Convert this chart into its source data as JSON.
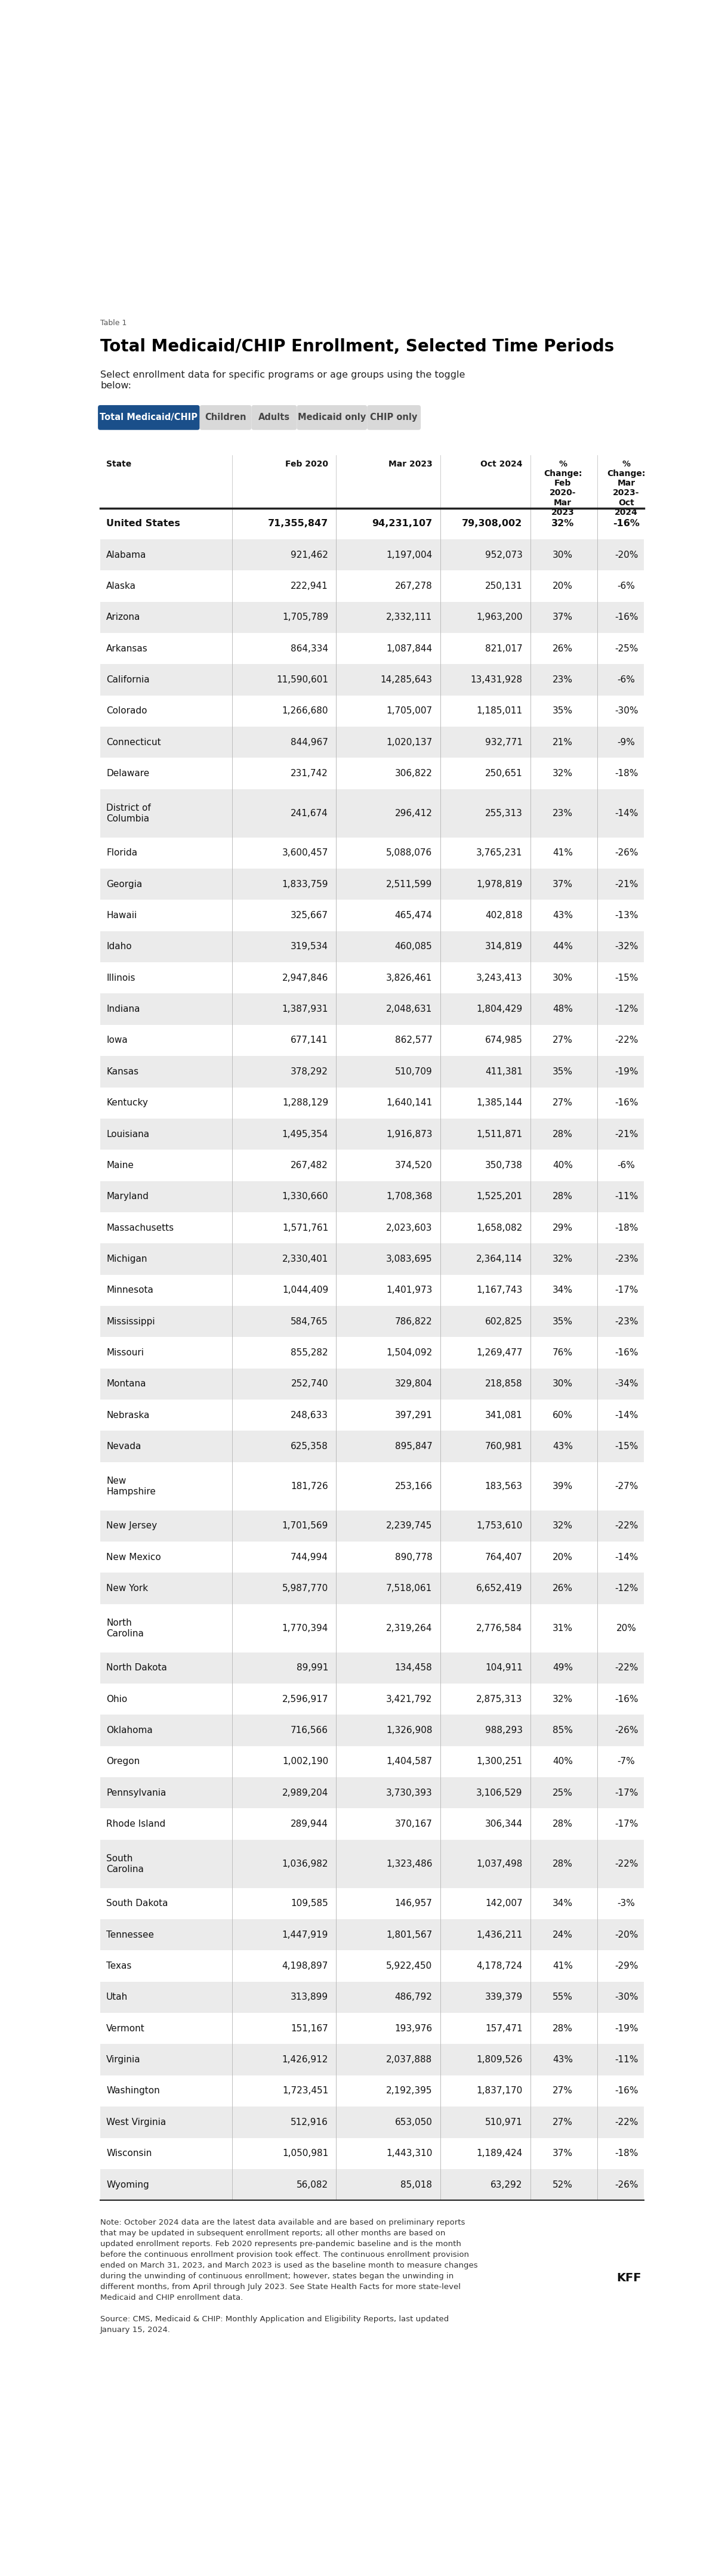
{
  "table_label": "Table 1",
  "title": "Total Medicaid/CHIP Enrollment, Selected Time Periods",
  "subtitle": "Select enrollment data for specific programs or age groups using the toggle\nbelow:",
  "toggle_buttons": [
    "Total Medicaid/CHIP",
    "Children",
    "Adults",
    "Medicaid only",
    "CHIP only"
  ],
  "active_button": 0,
  "rows": [
    [
      "United States",
      "71,355,847",
      "94,231,107",
      "79,308,002",
      "32%",
      "-16%"
    ],
    [
      "Alabama",
      "921,462",
      "1,197,004",
      "952,073",
      "30%",
      "-20%"
    ],
    [
      "Alaska",
      "222,941",
      "267,278",
      "250,131",
      "20%",
      "-6%"
    ],
    [
      "Arizona",
      "1,705,789",
      "2,332,111",
      "1,963,200",
      "37%",
      "-16%"
    ],
    [
      "Arkansas",
      "864,334",
      "1,087,844",
      "821,017",
      "26%",
      "-25%"
    ],
    [
      "California",
      "11,590,601",
      "14,285,643",
      "13,431,928",
      "23%",
      "-6%"
    ],
    [
      "Colorado",
      "1,266,680",
      "1,705,007",
      "1,185,011",
      "35%",
      "-30%"
    ],
    [
      "Connecticut",
      "844,967",
      "1,020,137",
      "932,771",
      "21%",
      "-9%"
    ],
    [
      "Delaware",
      "231,742",
      "306,822",
      "250,651",
      "32%",
      "-18%"
    ],
    [
      "District of\nColumbia",
      "241,674",
      "296,412",
      "255,313",
      "23%",
      "-14%"
    ],
    [
      "Florida",
      "3,600,457",
      "5,088,076",
      "3,765,231",
      "41%",
      "-26%"
    ],
    [
      "Georgia",
      "1,833,759",
      "2,511,599",
      "1,978,819",
      "37%",
      "-21%"
    ],
    [
      "Hawaii",
      "325,667",
      "465,474",
      "402,818",
      "43%",
      "-13%"
    ],
    [
      "Idaho",
      "319,534",
      "460,085",
      "314,819",
      "44%",
      "-32%"
    ],
    [
      "Illinois",
      "2,947,846",
      "3,826,461",
      "3,243,413",
      "30%",
      "-15%"
    ],
    [
      "Indiana",
      "1,387,931",
      "2,048,631",
      "1,804,429",
      "48%",
      "-12%"
    ],
    [
      "Iowa",
      "677,141",
      "862,577",
      "674,985",
      "27%",
      "-22%"
    ],
    [
      "Kansas",
      "378,292",
      "510,709",
      "411,381",
      "35%",
      "-19%"
    ],
    [
      "Kentucky",
      "1,288,129",
      "1,640,141",
      "1,385,144",
      "27%",
      "-16%"
    ],
    [
      "Louisiana",
      "1,495,354",
      "1,916,873",
      "1,511,871",
      "28%",
      "-21%"
    ],
    [
      "Maine",
      "267,482",
      "374,520",
      "350,738",
      "40%",
      "-6%"
    ],
    [
      "Maryland",
      "1,330,660",
      "1,708,368",
      "1,525,201",
      "28%",
      "-11%"
    ],
    [
      "Massachusetts",
      "1,571,761",
      "2,023,603",
      "1,658,082",
      "29%",
      "-18%"
    ],
    [
      "Michigan",
      "2,330,401",
      "3,083,695",
      "2,364,114",
      "32%",
      "-23%"
    ],
    [
      "Minnesota",
      "1,044,409",
      "1,401,973",
      "1,167,743",
      "34%",
      "-17%"
    ],
    [
      "Mississippi",
      "584,765",
      "786,822",
      "602,825",
      "35%",
      "-23%"
    ],
    [
      "Missouri",
      "855,282",
      "1,504,092",
      "1,269,477",
      "76%",
      "-16%"
    ],
    [
      "Montana",
      "252,740",
      "329,804",
      "218,858",
      "30%",
      "-34%"
    ],
    [
      "Nebraska",
      "248,633",
      "397,291",
      "341,081",
      "60%",
      "-14%"
    ],
    [
      "Nevada",
      "625,358",
      "895,847",
      "760,981",
      "43%",
      "-15%"
    ],
    [
      "New\nHampshire",
      "181,726",
      "253,166",
      "183,563",
      "39%",
      "-27%"
    ],
    [
      "New Jersey",
      "1,701,569",
      "2,239,745",
      "1,753,610",
      "32%",
      "-22%"
    ],
    [
      "New Mexico",
      "744,994",
      "890,778",
      "764,407",
      "20%",
      "-14%"
    ],
    [
      "New York",
      "5,987,770",
      "7,518,061",
      "6,652,419",
      "26%",
      "-12%"
    ],
    [
      "North\nCarolina",
      "1,770,394",
      "2,319,264",
      "2,776,584",
      "31%",
      "20%"
    ],
    [
      "North Dakota",
      "89,991",
      "134,458",
      "104,911",
      "49%",
      "-22%"
    ],
    [
      "Ohio",
      "2,596,917",
      "3,421,792",
      "2,875,313",
      "32%",
      "-16%"
    ],
    [
      "Oklahoma",
      "716,566",
      "1,326,908",
      "988,293",
      "85%",
      "-26%"
    ],
    [
      "Oregon",
      "1,002,190",
      "1,404,587",
      "1,300,251",
      "40%",
      "-7%"
    ],
    [
      "Pennsylvania",
      "2,989,204",
      "3,730,393",
      "3,106,529",
      "25%",
      "-17%"
    ],
    [
      "Rhode Island",
      "289,944",
      "370,167",
      "306,344",
      "28%",
      "-17%"
    ],
    [
      "South\nCarolina",
      "1,036,982",
      "1,323,486",
      "1,037,498",
      "28%",
      "-22%"
    ],
    [
      "South Dakota",
      "109,585",
      "146,957",
      "142,007",
      "34%",
      "-3%"
    ],
    [
      "Tennessee",
      "1,447,919",
      "1,801,567",
      "1,436,211",
      "24%",
      "-20%"
    ],
    [
      "Texas",
      "4,198,897",
      "5,922,450",
      "4,178,724",
      "41%",
      "-29%"
    ],
    [
      "Utah",
      "313,899",
      "486,792",
      "339,379",
      "55%",
      "-30%"
    ],
    [
      "Vermont",
      "151,167",
      "193,976",
      "157,471",
      "28%",
      "-19%"
    ],
    [
      "Virginia",
      "1,426,912",
      "2,037,888",
      "1,809,526",
      "43%",
      "-11%"
    ],
    [
      "Washington",
      "1,723,451",
      "2,192,395",
      "1,837,170",
      "27%",
      "-16%"
    ],
    [
      "West Virginia",
      "512,916",
      "653,050",
      "510,971",
      "27%",
      "-22%"
    ],
    [
      "Wisconsin",
      "1,050,981",
      "1,443,310",
      "1,189,424",
      "37%",
      "-18%"
    ],
    [
      "Wyoming",
      "56,082",
      "85,018",
      "63,292",
      "52%",
      "-26%"
    ]
  ],
  "note": "Note: October 2024 data are the latest data available and are based on preliminary reports\nthat may be updated in subsequent enrollment reports; all other months are based on\nupdated enrollment reports. Feb 2020 represents pre-pandemic baseline and is the month\nbefore the continuous enrollment provision took effect. The continuous enrollment provision\nended on March 31, 2023, and March 2023 is used as the baseline month to measure changes\nduring the unwinding of continuous enrollment; however, states began the unwinding in\ndifferent months, from April through July 2023. See State Health Facts for more state-level\nMedicaid and CHIP enrollment data.",
  "source": "Source: CMS, Medicaid & CHIP: Monthly Application and Eligibility Reports, last updated\nJanuary 15, 2024.",
  "kff_label": "KFF",
  "active_button_color": "#1a4f8a",
  "inactive_button_color": "#d9d9d9",
  "active_text_color": "#ffffff",
  "inactive_text_color": "#444444",
  "row_even_color": "#ebebeb",
  "row_odd_color": "#ffffff",
  "divider_color": "#222222",
  "title_color": "#000000",
  "note_color": "#333333"
}
